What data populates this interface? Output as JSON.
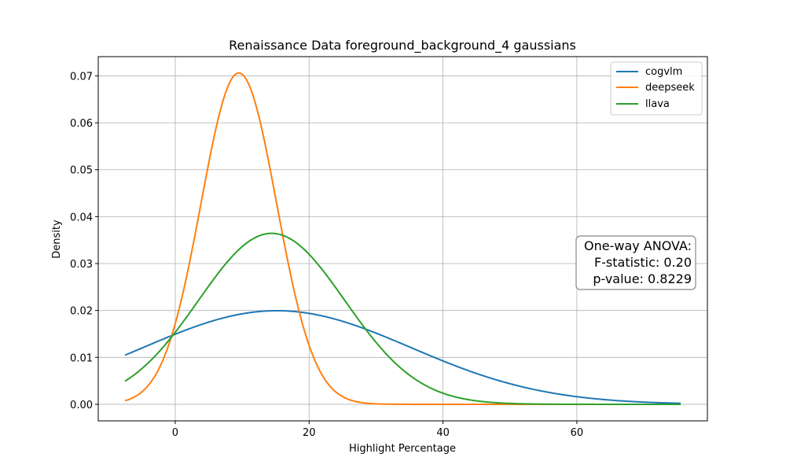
{
  "chart_data": {
    "type": "line",
    "title": "Renaissance Data foreground_background_4 gaussians",
    "xlabel": "Highlight Percentage",
    "ylabel": "Density",
    "xlim": [
      -11.5,
      79.5
    ],
    "ylim": [
      -0.00353,
      0.0741
    ],
    "x_range": [
      -7.5,
      75.5
    ],
    "xticks": [
      0,
      20,
      40,
      60
    ],
    "yticks": [
      0.0,
      0.01,
      0.02,
      0.03,
      0.04,
      0.05,
      0.06,
      0.07
    ],
    "ytick_labels": [
      "0.00",
      "0.01",
      "0.02",
      "0.03",
      "0.04",
      "0.05",
      "0.06",
      "0.07"
    ],
    "grid": true,
    "legend_position": "top-right",
    "series": [
      {
        "name": "cogvlm",
        "color": "#1f77b4",
        "mean": 15.2,
        "std": 20.0
      },
      {
        "name": "deepseek",
        "color": "#ff7f0e",
        "mean": 9.5,
        "std": 5.65
      },
      {
        "name": "llava",
        "color": "#2ca02c",
        "mean": 14.4,
        "std": 10.95
      }
    ],
    "annotation": {
      "lines": [
        "One-way ANOVA:",
        "F-statistic: 0.20",
        "p-value: 0.8229"
      ],
      "position": "right"
    }
  }
}
